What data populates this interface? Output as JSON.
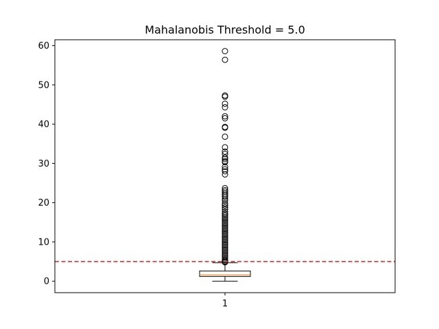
{
  "chart_data": {
    "type": "box",
    "title": "Mahalanobis Threshold = 5.0",
    "xlabel": "",
    "ylabel": "",
    "categories": [
      "1"
    ],
    "ylim": [
      -2.93,
      61.5
    ],
    "yticks": [
      0,
      10,
      20,
      30,
      40,
      50,
      60
    ],
    "box": {
      "whisker_low": 0.0,
      "q1": 1.2,
      "median": 1.6,
      "q3": 2.6,
      "whisker_high": 4.7
    },
    "outliers": [
      58.6,
      56.4,
      47.3,
      47.0,
      45.2,
      44.3,
      42.0,
      41.5,
      39.3,
      39.1,
      36.8,
      34.1,
      33.0,
      32.4,
      31.5,
      31.1,
      30.6,
      30.3,
      29.1,
      28.5,
      28.0,
      27.2,
      23.7,
      23.2,
      22.8,
      22.3,
      21.9,
      21.5,
      21.0,
      20.5,
      19.8,
      19.3,
      18.8,
      18.3,
      17.7,
      17.2,
      16.8,
      16.4,
      16.0,
      15.6,
      15.2,
      14.8,
      14.4,
      14.0,
      13.6,
      13.2,
      12.8,
      12.4,
      12.0,
      11.6,
      11.2,
      10.8,
      10.4,
      10.0,
      9.6,
      9.2,
      8.8,
      8.4,
      8.0,
      7.6,
      7.2,
      6.8,
      6.4,
      6.0,
      5.6,
      5.3,
      5.0,
      4.8
    ],
    "threshold": 5.0,
    "colors": {
      "median": "#ff7f0e",
      "threshold": "#d62728",
      "box": "#000000"
    },
    "grid": false,
    "legend": "none"
  }
}
